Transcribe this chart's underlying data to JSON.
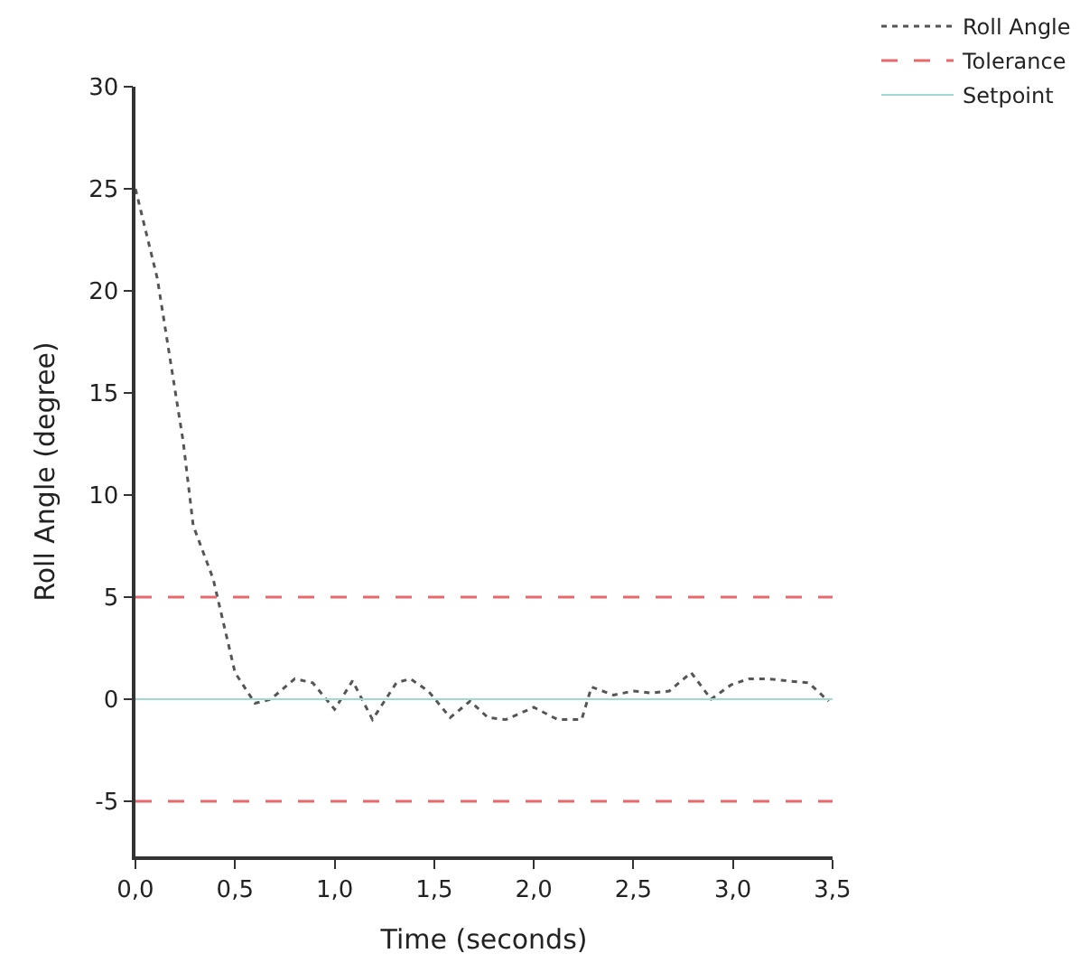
{
  "chart_data": {
    "type": "line",
    "xlabel": "Time (seconds)",
    "ylabel": "Roll Angle (degree)",
    "xlim": [
      0,
      3.5
    ],
    "ylim": [
      -7.7,
      30
    ],
    "xticks": [
      {
        "value": 0,
        "label": "0,0"
      },
      {
        "value": 0.5,
        "label": "0,5"
      },
      {
        "value": 1,
        "label": "1,0"
      },
      {
        "value": 1.5,
        "label": "1,5"
      },
      {
        "value": 2,
        "label": "2,0"
      },
      {
        "value": 2.5,
        "label": "2,5"
      },
      {
        "value": 3,
        "label": "3,0"
      },
      {
        "value": 3.5,
        "label": "3,5"
      }
    ],
    "yticks": [
      -5,
      0,
      5,
      10,
      15,
      20,
      25,
      30
    ],
    "grid": false,
    "legend": "top right",
    "line_style": "dotted",
    "series": [
      {
        "name": "Roll Angle",
        "color": "#555555",
        "x": [
          0,
          0.11,
          0.24,
          0.29,
          0.39,
          0.5,
          0.6,
          0.68,
          0.8,
          0.89,
          1.0,
          1.09,
          1.19,
          1.31,
          1.38,
          1.47,
          1.58,
          1.68,
          1.77,
          1.86,
          2.0,
          2.12,
          2.24,
          2.29,
          2.4,
          2.5,
          2.59,
          2.68,
          2.79,
          2.89,
          2.99,
          3.08,
          3.17,
          3.27,
          3.38,
          3.48
        ],
        "values": [
          25,
          20.6,
          12.6,
          8.5,
          5.9,
          1.3,
          -0.2,
          0,
          1.0,
          0.8,
          -0.5,
          0.9,
          -1.0,
          0.8,
          1.0,
          0.4,
          -0.9,
          -0.1,
          -0.9,
          -1.0,
          -0.4,
          -1.0,
          -1.0,
          0.6,
          0.2,
          0.4,
          0.3,
          0.4,
          1.3,
          0,
          0.7,
          1.0,
          1.0,
          0.9,
          0.8,
          -0.1
        ]
      }
    ],
    "ref_lines": [
      {
        "axis": "y",
        "value": 5,
        "label": "Tolerance",
        "color": "#e8696b",
        "line_style": "dashed"
      },
      {
        "axis": "y",
        "value": -5,
        "color": "#e8696b",
        "line_style": "dashed"
      },
      {
        "axis": "y",
        "value": 0,
        "label": "Setpoint",
        "color": "#9fd9cf",
        "line_style": "solid"
      }
    ]
  }
}
